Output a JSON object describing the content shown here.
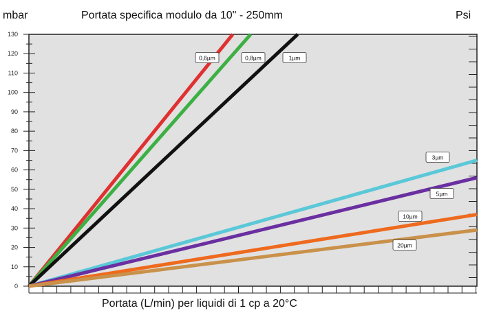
{
  "chart_data": {
    "type": "line",
    "title": "Portata specifica modulo da 10\" - 250mm",
    "ylabel": "mbar",
    "ylabel_right": "Psi",
    "xlabel": "Portata (L/min) per liquidi di 1 cp a 20°C",
    "ylim": [
      0,
      130
    ],
    "xlim": [
      0,
      100
    ],
    "yticks": [
      "0",
      "10",
      "20",
      "30",
      "40",
      "50",
      "60",
      "70",
      "80",
      "90",
      "100",
      "110",
      "120",
      "130"
    ],
    "grid": false,
    "series": [
      {
        "name": "0,6µm",
        "color": "#e03030",
        "x": [
          0,
          45.5
        ],
        "y": [
          0,
          130
        ]
      },
      {
        "name": "0,8µm",
        "color": "#3cb043",
        "x": [
          0,
          49.5
        ],
        "y": [
          0,
          130
        ]
      },
      {
        "name": "1µm",
        "color": "#111111",
        "x": [
          0,
          60.0
        ],
        "y": [
          0,
          130
        ]
      },
      {
        "name": "3µm",
        "color": "#5bc8d8",
        "x": [
          0,
          100
        ],
        "y": [
          0,
          65
        ]
      },
      {
        "name": "5µm",
        "color": "#6a2fa0",
        "x": [
          0,
          100
        ],
        "y": [
          0,
          56
        ]
      },
      {
        "name": "10µm",
        "color": "#ee6a1e",
        "x": [
          0,
          100
        ],
        "y": [
          0,
          37
        ]
      },
      {
        "name": "20µm",
        "color": "#c9914a",
        "x": [
          0,
          100
        ],
        "y": [
          0,
          29
        ]
      }
    ]
  }
}
